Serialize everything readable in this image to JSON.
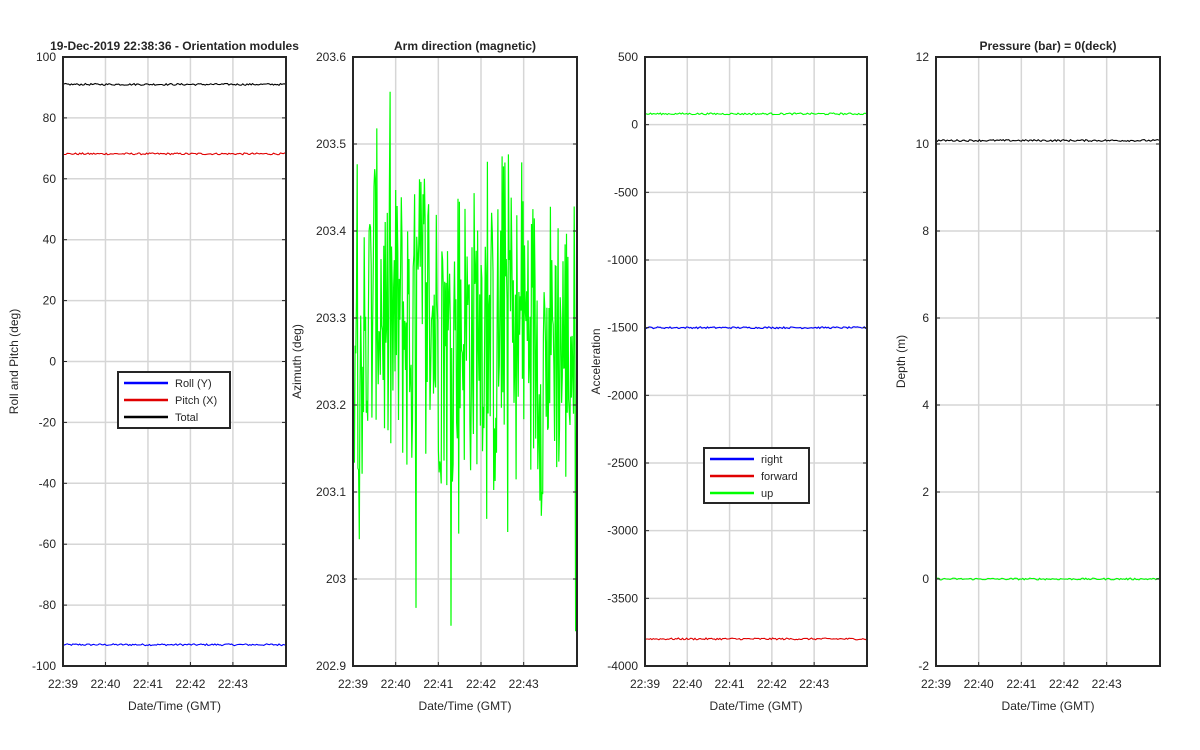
{
  "figure_title": "19-Dec-2019 22:38:36 - Orientation modules",
  "colors": {
    "blue": "#0000ff",
    "red": "#e00000",
    "black": "#000000",
    "green": "#00ff00",
    "grid": "#d6d6d6",
    "axes": "#262626"
  },
  "chart_data": [
    {
      "type": "line",
      "title": "",
      "xlabel": "Date/Time (GMT)",
      "ylabel": "Roll and Pitch (deg)",
      "xticks": [
        "22:39",
        "22:40",
        "22:41",
        "22:42",
        "22:43"
      ],
      "xlim": [
        "22:39",
        "22:44:15"
      ],
      "ylim": [
        -100,
        100
      ],
      "yticks": [
        -100,
        -80,
        -60,
        -40,
        -20,
        0,
        20,
        40,
        60,
        80,
        100
      ],
      "grid": true,
      "legend": "center",
      "series": [
        {
          "name": "Roll (Y)",
          "color": "blue",
          "values": [
            -93,
            -93
          ]
        },
        {
          "name": "Pitch (X)",
          "color": "red",
          "values": [
            68.2,
            68.2
          ]
        },
        {
          "name": "Total",
          "color": "black",
          "values": [
            91,
            91
          ]
        }
      ]
    },
    {
      "type": "line",
      "title": "Arm direction (magnetic)",
      "xlabel": "Date/Time (GMT)",
      "ylabel": "Azimuth (deg)",
      "xticks": [
        "22:39",
        "22:40",
        "22:41",
        "22:42",
        "22:43"
      ],
      "xlim": [
        "22:39",
        "22:44:15"
      ],
      "ylim": [
        202.9,
        203.6
      ],
      "yticks": [
        202.9,
        203,
        203.1,
        203.2,
        203.3,
        203.4,
        203.5,
        203.6
      ],
      "grid": true,
      "legend": "none",
      "series": [
        {
          "name": "",
          "color": "green",
          "noisy": true,
          "values": [
            203.32,
            203.25,
            203.35,
            203.28,
            203.3,
            203.27,
            203.33,
            203.29,
            203.26,
            203.3,
            203.28,
            203.31,
            203.25,
            203.34,
            203.27,
            203.3,
            203.24,
            203.29,
            203.26,
            203.28
          ]
        }
      ]
    },
    {
      "type": "line",
      "title": "",
      "xlabel": "Date/Time (GMT)",
      "ylabel": "Acceleration",
      "xticks": [
        "22:39",
        "22:40",
        "22:41",
        "22:42",
        "22:43"
      ],
      "xlim": [
        "22:39",
        "22:44:15"
      ],
      "ylim": [
        -4000,
        500
      ],
      "yticks": [
        -4000,
        -3500,
        -3000,
        -2500,
        -2000,
        -1500,
        -1000,
        -500,
        0,
        500
      ],
      "grid": true,
      "legend": "center-bottom",
      "series": [
        {
          "name": "right",
          "color": "blue",
          "values": [
            -1500,
            -1500
          ]
        },
        {
          "name": "forward",
          "color": "red",
          "values": [
            -3800,
            -3800
          ]
        },
        {
          "name": "up",
          "color": "green",
          "values": [
            80,
            80
          ]
        }
      ]
    },
    {
      "type": "line",
      "title": "Pressure (bar) = 0(deck)",
      "xlabel": "Date/Time (GMT)",
      "ylabel": "Depth (m)",
      "xticks": [
        "22:39",
        "22:40",
        "22:41",
        "22:42",
        "22:43"
      ],
      "xlim": [
        "22:39",
        "22:44:15"
      ],
      "ylim": [
        -2,
        12
      ],
      "yticks": [
        -2,
        0,
        2,
        4,
        6,
        8,
        10,
        12
      ],
      "grid": true,
      "legend": "none",
      "series": [
        {
          "name": "",
          "color": "black",
          "values": [
            10.08,
            10.08
          ]
        },
        {
          "name": "",
          "color": "green",
          "values": [
            0,
            0
          ]
        }
      ]
    }
  ]
}
